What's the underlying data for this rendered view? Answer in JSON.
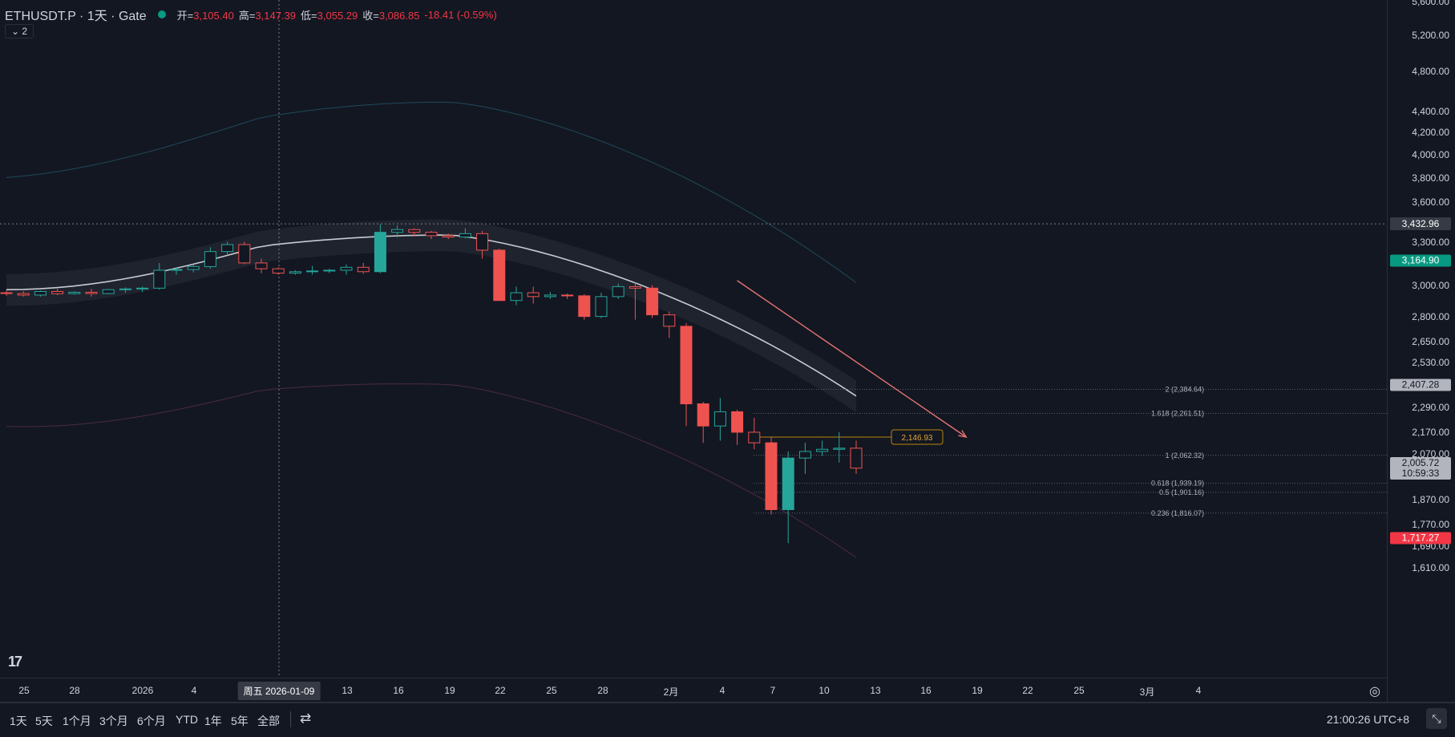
{
  "legend": {
    "symbol": "ETHUSDT.P · 1天 · Gate",
    "open_label": "开=",
    "open_value": "3,105.40",
    "high_label": "高=",
    "high_value": "3,147.39",
    "low_label": "低=",
    "low_value": "3,055.29",
    "close_label": "收=",
    "close_value": "3,086.85",
    "change": "-18.41 (-0.59%)",
    "collapse": "⌄ 2"
  },
  "chart_data": {
    "type": "candlestick",
    "price_scale": "log",
    "y_axis_ticks": [
      "5,600.00",
      "5,200.00",
      "4,800.00",
      "4,400.00",
      "4,200.00",
      "4,000.00",
      "3,800.00",
      "3,600.00",
      "3,300.00",
      "3,000.00",
      "2,800.00",
      "2,650.00",
      "2,530.00",
      "2,290.00",
      "2,170.00",
      "2,070.00",
      "1,870.00",
      "1,770.00",
      "1,690.00",
      "1,610.00"
    ],
    "x_axis_ticks": [
      "25",
      "28",
      "2026",
      "4",
      "13",
      "16",
      "19",
      "22",
      "25",
      "28",
      "2月",
      "4",
      "7",
      "10",
      "13",
      "16",
      "19",
      "22",
      "25",
      "3月",
      "4"
    ],
    "crosshair_date": "周五 2026-01-09",
    "crosshair_price": "3,432.96",
    "price_badges": [
      {
        "label": "3,164.90",
        "value": 3164.9,
        "color": "#089981"
      },
      {
        "label": "2,407.28",
        "value": 2407.28,
        "color": "#b2b5be"
      },
      {
        "label": "2,005.72",
        "value": 2005.72,
        "color": "#b2b5be",
        "sub": "10:59:33"
      },
      {
        "label": "1,717.27",
        "value": 1717.27,
        "color": "#f23645"
      }
    ],
    "fib_levels": [
      {
        "ratio": "2",
        "value": 2384.64,
        "label": "2 (2,384.64)"
      },
      {
        "ratio": "1.618",
        "value": 2261.51,
        "label": "1.618 (2,261.51)"
      },
      {
        "ratio": "1",
        "value": 2062.32,
        "label": "1 (2,062.32)"
      },
      {
        "ratio": "0.618",
        "value": 1939.19,
        "label": "0.618 (1,939.19)"
      },
      {
        "ratio": "0.5",
        "value": 1901.16,
        "label": "0.5 (1,901.16)"
      },
      {
        "ratio": "0.236",
        "value": 1816.07,
        "label": "0.236 (1,816.07)"
      }
    ],
    "horizontal_line": {
      "value": 2146.93,
      "label": "2,146.93"
    },
    "trend_line": {
      "from": {
        "bar": 43,
        "price": 3030
      },
      "to": {
        "bar": 56,
        "price": 2146.93
      }
    },
    "candles_note": "approximate daily OHLC read from chart, bar index 0 = 2025-12-23",
    "candles": [
      [
        2950,
        2965,
        2930,
        2945
      ],
      [
        2945,
        2960,
        2925,
        2935
      ],
      [
        2935,
        2965,
        2925,
        2958
      ],
      [
        2958,
        2975,
        2935,
        2944
      ],
      [
        2944,
        2960,
        2938,
        2953
      ],
      [
        2953,
        2975,
        2925,
        2945
      ],
      [
        2945,
        2975,
        2940,
        2970
      ],
      [
        2970,
        2985,
        2950,
        2975
      ],
      [
        2975,
        2990,
        2955,
        2980
      ],
      [
        2980,
        3150,
        2970,
        3100
      ],
      [
        3100,
        3120,
        3070,
        3105
      ],
      [
        3105,
        3140,
        3085,
        3125
      ],
      [
        3125,
        3260,
        3110,
        3230
      ],
      [
        3230,
        3300,
        3210,
        3280
      ],
      [
        3280,
        3300,
        3140,
        3150
      ],
      [
        3150,
        3180,
        3080,
        3110
      ],
      [
        3110,
        3120,
        3070,
        3080
      ],
      [
        3080,
        3100,
        3070,
        3090
      ],
      [
        3090,
        3130,
        3070,
        3095
      ],
      [
        3095,
        3110,
        3080,
        3100
      ],
      [
        3100,
        3140,
        3070,
        3120
      ],
      [
        3120,
        3150,
        3075,
        3090
      ],
      [
        3090,
        3430,
        3080,
        3370
      ],
      [
        3370,
        3420,
        3330,
        3390
      ],
      [
        3390,
        3400,
        3340,
        3370
      ],
      [
        3370,
        3380,
        3320,
        3345
      ],
      [
        3345,
        3360,
        3320,
        3335
      ],
      [
        3335,
        3400,
        3325,
        3360
      ],
      [
        3360,
        3380,
        3180,
        3240
      ],
      [
        3240,
        3250,
        2900,
        2900
      ],
      [
        2900,
        2990,
        2870,
        2950
      ],
      [
        2950,
        2990,
        2880,
        2925
      ],
      [
        2925,
        2955,
        2910,
        2935
      ],
      [
        2935,
        2945,
        2910,
        2930
      ],
      [
        2930,
        2940,
        2780,
        2800
      ],
      [
        2800,
        2950,
        2790,
        2925
      ],
      [
        2925,
        3010,
        2910,
        2990
      ],
      [
        2990,
        3020,
        2780,
        2980
      ],
      [
        2980,
        3000,
        2790,
        2810
      ],
      [
        2810,
        2830,
        2670,
        2740
      ],
      [
        2740,
        2760,
        2200,
        2310
      ],
      [
        2310,
        2320,
        2120,
        2200
      ],
      [
        2200,
        2340,
        2130,
        2270
      ],
      [
        2270,
        2280,
        2110,
        2170
      ],
      [
        2170,
        2240,
        2090,
        2120
      ],
      [
        2120,
        2145,
        1810,
        1830
      ],
      [
        1830,
        2080,
        1700,
        2050
      ],
      [
        2050,
        2120,
        1980,
        2080
      ],
      [
        2080,
        2130,
        2060,
        2090
      ],
      [
        2090,
        2170,
        2030,
        2095
      ],
      [
        2095,
        2130,
        1980,
        2005
      ]
    ]
  },
  "bottom_bar": {
    "ranges": [
      "1天",
      "5天",
      "1个月",
      "3个月",
      "6个月",
      "YTD",
      "1年",
      "5年",
      "全部"
    ],
    "compare_icon": "⇄",
    "clock": "21:00:26 UTC+8",
    "expand": "⤡"
  },
  "logo": "17",
  "axis_settings_icon": "◎"
}
